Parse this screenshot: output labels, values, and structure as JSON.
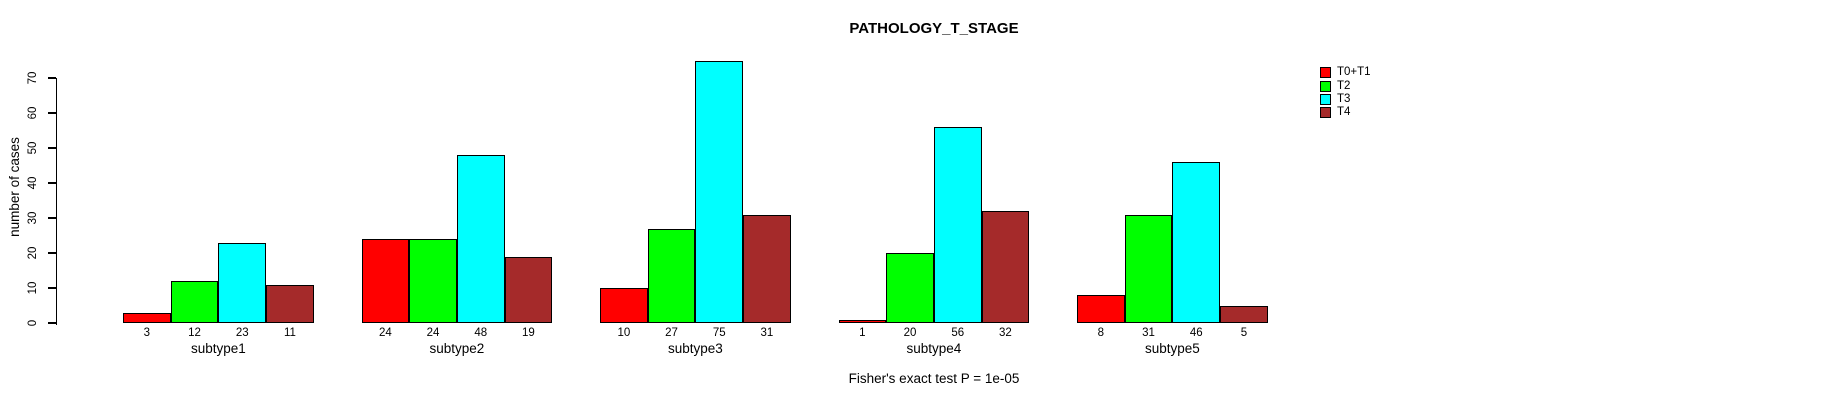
{
  "title": "PATHOLOGY_T_STAGE",
  "annotation": "Fisher's exact test P = 1e-05",
  "chart_data": {
    "type": "bar",
    "title": "PATHOLOGY_T_STAGE",
    "ylabel": "number of cases",
    "xlabel": "",
    "categories": [
      "subtype1",
      "subtype2",
      "subtype3",
      "subtype4",
      "subtype5"
    ],
    "series": [
      {
        "name": "T0+T1",
        "color": "#ff0000",
        "values": [
          3,
          24,
          10,
          1,
          8
        ]
      },
      {
        "name": "T2",
        "color": "#00ff00",
        "values": [
          12,
          24,
          27,
          20,
          31
        ]
      },
      {
        "name": "T3",
        "color": "#00ffff",
        "values": [
          23,
          48,
          75,
          56,
          46
        ]
      },
      {
        "name": "T4",
        "color": "#a52a2a",
        "values": [
          11,
          19,
          31,
          32,
          5
        ]
      }
    ],
    "bar_value_labels_shown": true,
    "ylim": [
      0,
      70
    ],
    "yticks": [
      0,
      10,
      20,
      30,
      40,
      50,
      60,
      70
    ],
    "grid": false,
    "legend_position": "top-right",
    "annotation": "Fisher's exact test P = 1e-05"
  }
}
